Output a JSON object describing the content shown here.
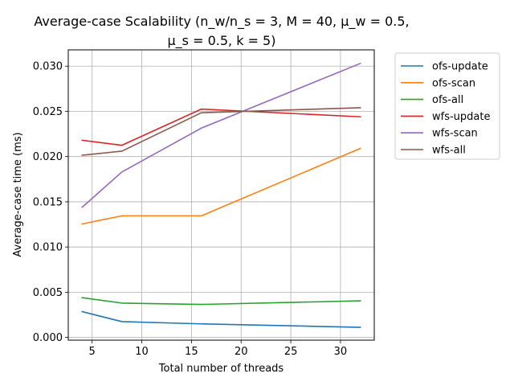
{
  "chart_data": {
    "type": "line",
    "title_line1": "Average-case Scalability (n_w/n_s = 3, M = 40, μ_w = 0.5,",
    "title_line2": "μ_s = 0.5, k = 5)",
    "xlabel": "Total number of threads",
    "ylabel": "Average-case time (ms)",
    "xlim": [
      2.6,
      33.4
    ],
    "ylim": [
      -0.0003,
      0.0318
    ],
    "xticks": [
      5,
      10,
      15,
      20,
      25,
      30
    ],
    "xtick_labels": [
      "5",
      "10",
      "15",
      "20",
      "25",
      "30"
    ],
    "yticks": [
      0.0,
      0.005,
      0.01,
      0.015,
      0.02,
      0.025,
      0.03
    ],
    "ytick_labels": [
      "0.000",
      "0.005",
      "0.010",
      "0.015",
      "0.020",
      "0.025",
      "0.030"
    ],
    "grid": true,
    "legend_position": "outside-right",
    "x": [
      4,
      8,
      16,
      32
    ],
    "series": [
      {
        "name": "ofs-update",
        "color": "#1f77b4",
        "values": [
          0.00285,
          0.00175,
          0.0015,
          0.00112
        ]
      },
      {
        "name": "ofs-scan",
        "color": "#ff7f0e",
        "values": [
          0.01255,
          0.01345,
          0.01345,
          0.0209
        ]
      },
      {
        "name": "ofs-all",
        "color": "#2ca02c",
        "values": [
          0.0044,
          0.0038,
          0.00365,
          0.00405
        ]
      },
      {
        "name": "wfs-update",
        "color": "#d62728",
        "values": [
          0.0218,
          0.02125,
          0.02525,
          0.0244
        ]
      },
      {
        "name": "wfs-scan",
        "color": "#9467bd",
        "values": [
          0.0144,
          0.0183,
          0.02315,
          0.0303
        ]
      },
      {
        "name": "wfs-all",
        "color": "#8c564b",
        "values": [
          0.02015,
          0.0206,
          0.02485,
          0.0254
        ]
      }
    ]
  }
}
